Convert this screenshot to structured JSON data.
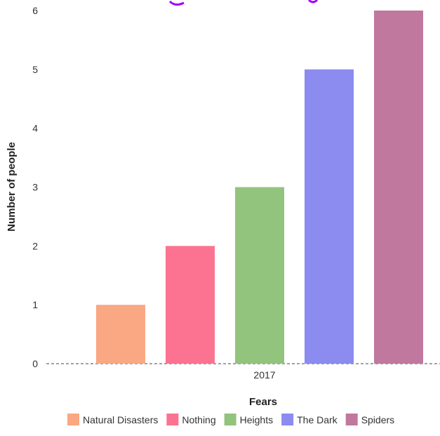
{
  "chart_data": {
    "type": "bar",
    "title": "",
    "xlabel": "Fears",
    "ylabel": "Number of people",
    "x_tick_label": "2017",
    "ylim": [
      0,
      6
    ],
    "y_ticks": [
      "0",
      "1",
      "2",
      "3",
      "4",
      "5",
      "6"
    ],
    "categories": [
      "2017"
    ],
    "series": [
      {
        "name": "Natural Disasters",
        "values": [
          1
        ],
        "color": "#F9A883"
      },
      {
        "name": "Nothing",
        "values": [
          2
        ],
        "color": "#FB7390"
      },
      {
        "name": "Heights",
        "values": [
          3
        ],
        "color": "#93C47D"
      },
      {
        "name": "The Dark",
        "values": [
          5
        ],
        "color": "#8B8BF0"
      },
      {
        "name": "Spiders",
        "values": [
          6
        ],
        "color": "#C0789E"
      }
    ],
    "grid": false,
    "legend_position": "bottom"
  }
}
